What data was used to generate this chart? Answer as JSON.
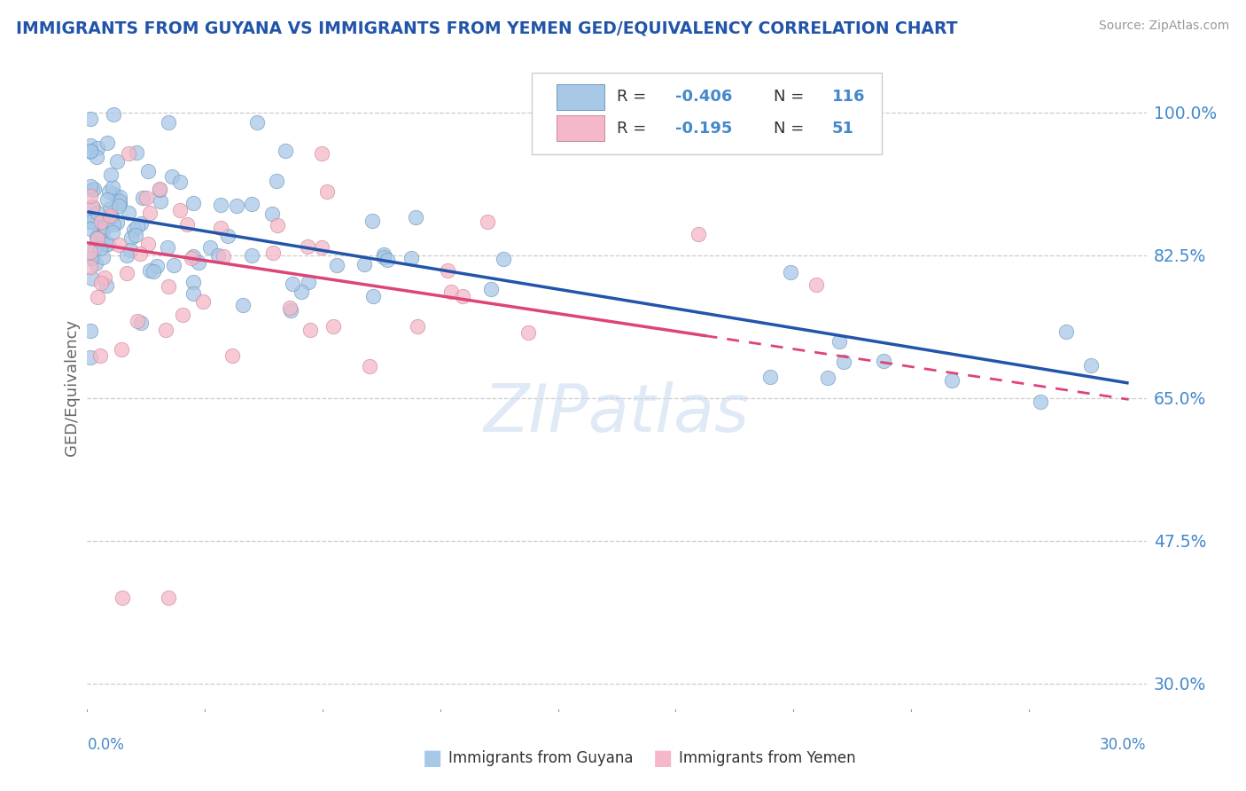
{
  "title": "IMMIGRANTS FROM GUYANA VS IMMIGRANTS FROM YEMEN GED/EQUIVALENCY CORRELATION CHART",
  "source": "Source: ZipAtlas.com",
  "ylabel": "GED/Equivalency",
  "ytick_labels": [
    "100.0%",
    "82.5%",
    "65.0%",
    "47.5%",
    "30.0%"
  ],
  "ytick_values": [
    1.0,
    0.825,
    0.65,
    0.475,
    0.3
  ],
  "xmin": 0.0,
  "xmax": 0.3,
  "ymin": 0.265,
  "ymax": 1.06,
  "legend_guyana": "Immigrants from Guyana",
  "legend_yemen": "Immigrants from Yemen",
  "R_guyana": "-0.406",
  "N_guyana": "116",
  "R_yemen": "-0.195",
  "N_yemen": "51",
  "blue_dot_color": "#a8c8e8",
  "pink_dot_color": "#f4b8c8",
  "blue_edge_color": "#7099bb",
  "pink_edge_color": "#cc8898",
  "blue_line_color": "#2255aa",
  "pink_line_color": "#dd4477",
  "title_color": "#2255aa",
  "source_color": "#999999",
  "axis_tick_color": "#4488cc",
  "watermark_color": "#ccddf0",
  "grid_color": "#cccccc",
  "legend_box_edge": "#cccccc",
  "background": "#ffffff"
}
